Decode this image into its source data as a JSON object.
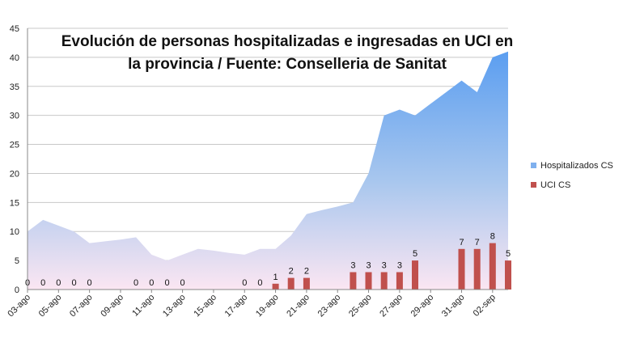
{
  "chart_data": {
    "type": "area+bar",
    "title_lines": [
      "Evolución de personas hospitalizadas e ingresadas en UCI en",
      "la provincia / Fuente: Conselleria de Sanitat"
    ],
    "xlabel": "",
    "ylabel": "",
    "ylim": [
      0,
      45
    ],
    "yticks": [
      0,
      5,
      10,
      15,
      20,
      25,
      30,
      35,
      40,
      45
    ],
    "grid": true,
    "legend_position": "right",
    "x": [
      "03-ago",
      "04-ago",
      "05-ago",
      "06-ago",
      "07-ago",
      "08-ago",
      "09-ago",
      "10-ago",
      "11-ago",
      "12-ago",
      "13-ago",
      "14-ago",
      "15-ago",
      "16-ago",
      "17-ago",
      "18-ago",
      "19-ago",
      "20-ago",
      "21-ago",
      "22-ago",
      "23-ago",
      "24-ago",
      "25-ago",
      "26-ago",
      "27-ago",
      "28-ago",
      "29-ago",
      "30-ago",
      "31-ago",
      "01-sep",
      "02-sep",
      "03-sep"
    ],
    "x_tick_labels": [
      "03-ago",
      "05-ago",
      "07-ago",
      "09-ago",
      "11-ago",
      "13-ago",
      "15-ago",
      "17-ago",
      "19-ago",
      "21-ago",
      "23-ago",
      "25-ago",
      "27-ago",
      "29-ago",
      "31-ago",
      "02-sep"
    ],
    "series": [
      {
        "name": "Hospitalizados CS",
        "kind": "area",
        "color_top": "#5b9ef0",
        "color_bottom": "#fbe6f2",
        "values": [
          10,
          12,
          11,
          10,
          8,
          8.3,
          8.6,
          9,
          6,
          5,
          6,
          7,
          6.7,
          6.3,
          6,
          7,
          7,
          9.3,
          13,
          13.7,
          14.3,
          15,
          20,
          30,
          31,
          30,
          32,
          34,
          36,
          34,
          40,
          41
        ]
      },
      {
        "name": "UCI CS",
        "kind": "bar",
        "color": "#c0504d",
        "values": [
          0,
          0,
          0,
          0,
          0,
          null,
          null,
          0,
          0,
          0,
          0,
          null,
          null,
          null,
          0,
          0,
          1,
          2,
          2,
          null,
          null,
          3,
          3,
          3,
          3,
          5,
          null,
          null,
          7,
          7,
          8,
          5
        ]
      }
    ]
  }
}
